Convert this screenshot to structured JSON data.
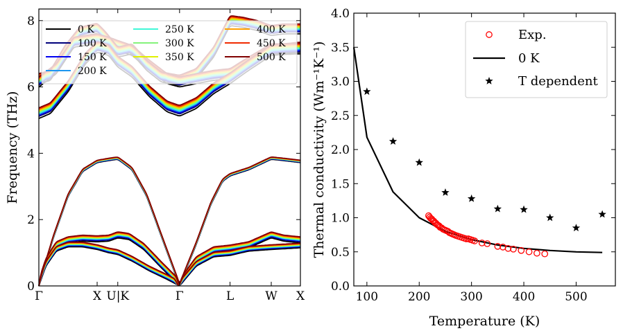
{
  "chart_data": [
    {
      "type": "line",
      "title": "",
      "xlabel": "",
      "ylabel": "Frequency (THz)",
      "ylim": [
        0,
        8.35
      ],
      "yticks": [
        0,
        2,
        4,
        6,
        8
      ],
      "x_ticks": [
        {
          "label": "Γ",
          "pos": 0.0
        },
        {
          "label": "X",
          "pos": 1.0
        },
        {
          "label": "U|K",
          "pos": 1.354
        },
        {
          "label": "Γ",
          "pos": 2.414
        },
        {
          "label": "L",
          "pos": 3.28
        },
        {
          "label": "W",
          "pos": 3.987
        },
        {
          "label": "X",
          "pos": 4.487
        }
      ],
      "legend_loc": "top",
      "series": [
        {
          "name": "0 K",
          "temperature": 0,
          "color": "#000000"
        },
        {
          "name": "100 K",
          "temperature": 100,
          "color": "#00007a"
        },
        {
          "name": "150 K",
          "temperature": 150,
          "color": "#0000f0"
        },
        {
          "name": "200 K",
          "temperature": 200,
          "color": "#1e96f0"
        },
        {
          "name": "250 K",
          "temperature": 250,
          "color": "#3ff7d7"
        },
        {
          "name": "300 K",
          "temperature": 300,
          "color": "#84f37a"
        },
        {
          "name": "350 K",
          "temperature": 350,
          "color": "#e0f000"
        },
        {
          "name": "400 K",
          "temperature": 400,
          "color": "#ff9e00"
        },
        {
          "name": "450 K",
          "temperature": 450,
          "color": "#f02a00"
        },
        {
          "name": "500 K",
          "temperature": 500,
          "color": "#800000"
        }
      ],
      "branches_0K": {
        "optical_high": [
          [
            0,
            6.1
          ],
          [
            0.2,
            6.2
          ],
          [
            0.45,
            6.95
          ],
          [
            0.7,
            7.5
          ],
          [
            1.0,
            7.62
          ],
          [
            1.15,
            7.35
          ],
          [
            1.354,
            6.9
          ],
          [
            1.6,
            7.0
          ],
          [
            1.85,
            6.5
          ],
          [
            2.1,
            6.15
          ],
          [
            2.414,
            6.05
          ],
          [
            2.7,
            6.25
          ],
          [
            3.0,
            6.9
          ],
          [
            3.28,
            7.85
          ],
          [
            3.5,
            7.8
          ],
          [
            3.75,
            7.7
          ],
          [
            3.987,
            7.55
          ],
          [
            4.2,
            7.6
          ],
          [
            4.487,
            7.6
          ]
        ],
        "optical_mid": [
          [
            0,
            6.0
          ],
          [
            0.3,
            6.4
          ],
          [
            0.6,
            7.2
          ],
          [
            1.0,
            7.3
          ],
          [
            1.2,
            7.2
          ],
          [
            1.354,
            7.1
          ],
          [
            1.6,
            6.95
          ],
          [
            1.9,
            6.5
          ],
          [
            2.2,
            6.1
          ],
          [
            2.414,
            6.0
          ],
          [
            2.7,
            6.1
          ],
          [
            3.0,
            6.2
          ],
          [
            3.28,
            6.25
          ],
          [
            3.6,
            6.6
          ],
          [
            3.987,
            7.0
          ],
          [
            4.2,
            7.0
          ],
          [
            4.487,
            7.05
          ]
        ],
        "optical_low": [
          [
            0,
            5.05
          ],
          [
            0.2,
            5.2
          ],
          [
            0.5,
            5.85
          ],
          [
            0.8,
            6.7
          ],
          [
            1.0,
            7.05
          ],
          [
            1.2,
            6.95
          ],
          [
            1.354,
            6.6
          ],
          [
            1.6,
            6.3
          ],
          [
            1.9,
            5.7
          ],
          [
            2.2,
            5.25
          ],
          [
            2.414,
            5.12
          ],
          [
            2.7,
            5.35
          ],
          [
            3.0,
            5.8
          ],
          [
            3.28,
            6.1
          ],
          [
            3.6,
            6.5
          ],
          [
            3.987,
            6.95
          ],
          [
            4.2,
            6.98
          ],
          [
            4.487,
            7.0
          ]
        ],
        "acoustic_la": [
          [
            0,
            0
          ],
          [
            0.25,
            1.45
          ],
          [
            0.5,
            2.7
          ],
          [
            0.75,
            3.45
          ],
          [
            1.0,
            3.72
          ],
          [
            1.2,
            3.78
          ],
          [
            1.354,
            3.82
          ],
          [
            1.6,
            3.5
          ],
          [
            1.85,
            2.7
          ],
          [
            2.1,
            1.5
          ],
          [
            2.414,
            0
          ],
          [
            2.7,
            1.25
          ],
          [
            2.95,
            2.45
          ],
          [
            3.15,
            3.15
          ],
          [
            3.28,
            3.32
          ],
          [
            3.6,
            3.5
          ],
          [
            3.987,
            3.82
          ],
          [
            4.2,
            3.78
          ],
          [
            4.487,
            3.72
          ]
        ],
        "acoustic_ta2": [
          [
            0,
            0
          ],
          [
            0.12,
            0.65
          ],
          [
            0.3,
            1.15
          ],
          [
            0.5,
            1.3
          ],
          [
            0.75,
            1.35
          ],
          [
            1.0,
            1.33
          ],
          [
            1.2,
            1.35
          ],
          [
            1.354,
            1.45
          ],
          [
            1.55,
            1.4
          ],
          [
            1.8,
            1.1
          ],
          [
            2.1,
            0.55
          ],
          [
            2.414,
            0
          ],
          [
            2.7,
            0.7
          ],
          [
            3.0,
            1.0
          ],
          [
            3.28,
            1.05
          ],
          [
            3.6,
            1.15
          ],
          [
            3.987,
            1.45
          ],
          [
            4.2,
            1.35
          ],
          [
            4.487,
            1.3
          ]
        ],
        "acoustic_ta1": [
          [
            0,
            0
          ],
          [
            0.12,
            0.6
          ],
          [
            0.3,
            1.05
          ],
          [
            0.5,
            1.18
          ],
          [
            0.75,
            1.18
          ],
          [
            1.0,
            1.1
          ],
          [
            1.2,
            1.0
          ],
          [
            1.354,
            0.95
          ],
          [
            1.6,
            0.75
          ],
          [
            1.9,
            0.45
          ],
          [
            2.2,
            0.2
          ],
          [
            2.414,
            0
          ],
          [
            2.7,
            0.6
          ],
          [
            3.0,
            0.88
          ],
          [
            3.28,
            0.92
          ],
          [
            3.6,
            1.05
          ],
          [
            3.987,
            1.1
          ],
          [
            4.2,
            1.12
          ],
          [
            4.487,
            1.15
          ]
        ]
      }
    },
    {
      "type": "scatter",
      "title": "",
      "xlabel": "Temperature (K)",
      "ylabel": "Thermal conductivity (Wm⁻¹K⁻¹)",
      "xlim": [
        75,
        575
      ],
      "ylim": [
        0.0,
        4.0
      ],
      "xticks": [
        100,
        200,
        300,
        400,
        500
      ],
      "yticks": [
        0.0,
        0.5,
        1.0,
        1.5,
        2.0,
        2.5,
        3.0,
        3.5,
        4.0
      ],
      "legend_loc": "top-right",
      "series": [
        {
          "name": "Exp.",
          "kind": "scatter-open-circle",
          "color": "#ff0000",
          "x": [
            218,
            220,
            222,
            224,
            226,
            228,
            230,
            232,
            234,
            236,
            238,
            240,
            243,
            246,
            249,
            252,
            255,
            258,
            261,
            264,
            267,
            270,
            274,
            278,
            282,
            286,
            290,
            294,
            298,
            302,
            306,
            320,
            330,
            350,
            360,
            370,
            380,
            395,
            410,
            425,
            440
          ],
          "y": [
            1.03,
            1.01,
            0.99,
            0.98,
            0.96,
            0.95,
            0.93,
            0.92,
            0.9,
            0.89,
            0.88,
            0.86,
            0.85,
            0.83,
            0.82,
            0.81,
            0.8,
            0.78,
            0.77,
            0.76,
            0.75,
            0.74,
            0.73,
            0.72,
            0.71,
            0.7,
            0.69,
            0.69,
            0.68,
            0.67,
            0.66,
            0.63,
            0.62,
            0.58,
            0.57,
            0.55,
            0.54,
            0.52,
            0.5,
            0.48,
            0.47
          ]
        },
        {
          "name": "0 K",
          "kind": "line",
          "color": "#000000",
          "x": [
            75,
            100,
            150,
            200,
            250,
            300,
            350,
            400,
            450,
            500,
            550
          ],
          "y": [
            3.5,
            2.18,
            1.38,
            1.0,
            0.8,
            0.68,
            0.6,
            0.55,
            0.52,
            0.5,
            0.49
          ]
        },
        {
          "name": "T dependent",
          "kind": "scatter-star",
          "color": "#000000",
          "x": [
            100,
            150,
            200,
            250,
            300,
            350,
            400,
            450,
            500,
            550
          ],
          "y": [
            2.85,
            2.12,
            1.81,
            1.37,
            1.28,
            1.13,
            1.12,
            1.0,
            0.85,
            1.05
          ]
        }
      ]
    }
  ]
}
